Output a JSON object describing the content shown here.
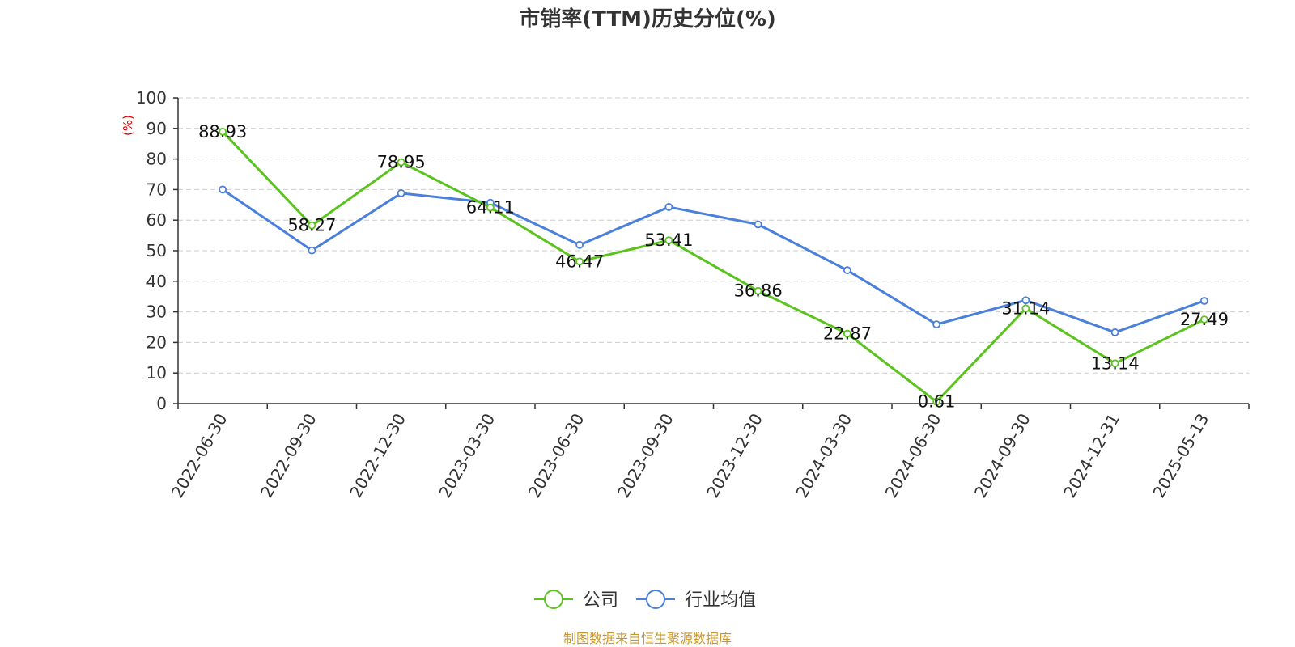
{
  "chart_data": {
    "type": "line",
    "title": "市销率(TTM)历史分位(%)",
    "ylabel": "(%)",
    "xlabel": "",
    "ylim": [
      0,
      100
    ],
    "yticks": [
      0,
      10,
      20,
      30,
      40,
      50,
      60,
      70,
      80,
      90,
      100
    ],
    "grid": true,
    "legend_position": "bottom-center",
    "categories": [
      "2022-06-30",
      "2022-09-30",
      "2022-12-30",
      "2023-03-30",
      "2023-06-30",
      "2023-09-30",
      "2023-12-30",
      "2024-03-30",
      "2024-06-30",
      "2024-09-30",
      "2024-12-31",
      "2025-05-13"
    ],
    "series": [
      {
        "name": "公司",
        "color": "#5bc31e",
        "show_labels": true,
        "values": [
          88.93,
          58.27,
          78.95,
          64.11,
          46.47,
          53.41,
          36.86,
          22.87,
          0.61,
          31.14,
          13.14,
          27.49
        ]
      },
      {
        "name": "行业均值",
        "color": "#4a7fdc",
        "show_labels": false,
        "values": [
          70.0,
          50.1,
          68.8,
          65.7,
          51.9,
          64.3,
          58.6,
          43.6,
          25.9,
          33.8,
          23.3,
          33.6
        ]
      }
    ],
    "source": "制图数据来自恒生聚源数据库"
  }
}
